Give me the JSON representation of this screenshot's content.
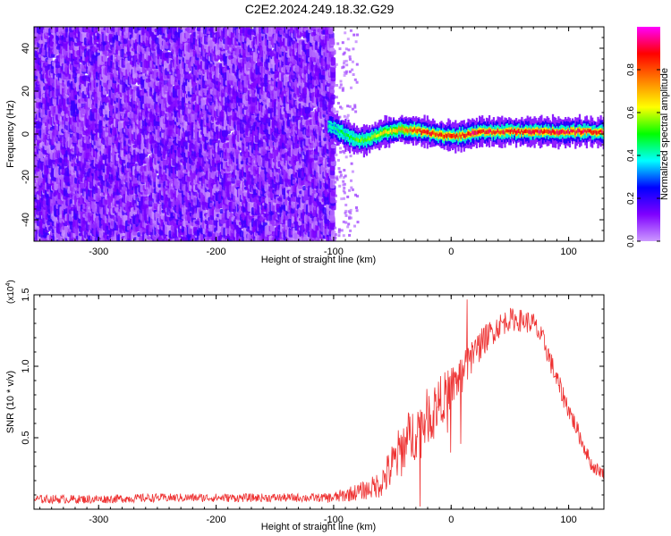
{
  "title": "C2E2.2024.249.18.32.G29",
  "chart_data": [
    {
      "type": "heatmap",
      "xlabel": "Height of straight line (km)",
      "ylabel": "Frequency (Hz)",
      "xlim": [
        -355,
        130
      ],
      "ylim": [
        -50,
        50
      ],
      "xticks": [
        -300,
        -200,
        -100,
        0,
        100
      ],
      "yticks": [
        -40,
        -20,
        0,
        20,
        40
      ],
      "colorbar": {
        "label": "Normalized spectral amplitude",
        "range": [
          0.0,
          1.0
        ],
        "ticks": [
          0.0,
          0.2,
          0.4,
          0.6,
          0.8
        ],
        "tick_labels": [
          "0.0",
          "0.2",
          "0.4",
          "0.6",
          "0.8"
        ],
        "colormap": [
          "#cc99ff",
          "#7f00ff",
          "#0000ff",
          "#00ffff",
          "#00ff00",
          "#ffff00",
          "#ff8000",
          "#ff0000",
          "#ff00ff"
        ]
      },
      "noise_region": {
        "x": [
          -355,
          -100
        ],
        "freq": [
          -50,
          50
        ],
        "amplitude": [
          0.0,
          0.2
        ]
      },
      "signal_track": {
        "x": [
          -105,
          -95,
          -85,
          -75,
          -65,
          -55,
          -45,
          -35,
          -25,
          -15,
          -5,
          5,
          15,
          25,
          35,
          45,
          55,
          65,
          75,
          85,
          95,
          105,
          115,
          130
        ],
        "freq": [
          4,
          1,
          -2,
          -3,
          -1,
          1,
          2,
          2,
          1,
          0,
          -1,
          -1,
          0,
          1,
          1,
          1,
          1,
          1,
          1,
          1,
          1,
          1,
          1,
          1
        ],
        "peak_amplitude": [
          0.45,
          0.5,
          0.55,
          0.6,
          0.65,
          0.7,
          0.75,
          0.85,
          0.9,
          0.9,
          0.9,
          0.9,
          0.95,
          0.95,
          0.95,
          0.95,
          0.95,
          0.95,
          0.95,
          0.95,
          0.95,
          0.95,
          0.95,
          0.95
        ]
      },
      "grid": false
    },
    {
      "type": "line",
      "xlabel": "Height of straight line (km)",
      "ylabel": "SNR (10 * v/v)",
      "y_multiplier": "(x10",
      "y_multiplier_exp": "4",
      "y_multiplier_close": ")",
      "xlim": [
        -355,
        130
      ],
      "ylim": [
        0,
        1.5
      ],
      "xticks": [
        -300,
        -200,
        -100,
        0,
        100
      ],
      "yticks": [
        0.5,
        1.0,
        1.5
      ],
      "ytick_labels": [
        "0.5",
        "1.0",
        "1.5"
      ],
      "color": "#ee3333",
      "series": [
        {
          "x": [
            -355,
            -300,
            -250,
            -200,
            -150,
            -110,
            -100,
            -90,
            -80,
            -70,
            -60,
            -50,
            -40,
            -30,
            -20,
            -10,
            0,
            10,
            20,
            30,
            40,
            50,
            60,
            70,
            80,
            90,
            100,
            110,
            120,
            130
          ],
          "values": [
            0.07,
            0.07,
            0.08,
            0.08,
            0.08,
            0.08,
            0.08,
            0.1,
            0.12,
            0.14,
            0.18,
            0.3,
            0.45,
            0.55,
            0.65,
            0.75,
            0.85,
            0.95,
            1.1,
            1.2,
            1.28,
            1.33,
            1.32,
            1.3,
            1.15,
            0.9,
            0.7,
            0.5,
            0.3,
            0.25
          ],
          "noise": [
            0.03,
            0.03,
            0.03,
            0.03,
            0.03,
            0.03,
            0.04,
            0.05,
            0.06,
            0.07,
            0.1,
            0.17,
            0.2,
            0.2,
            0.2,
            0.18,
            0.15,
            0.14,
            0.12,
            0.1,
            0.09,
            0.08,
            0.08,
            0.08,
            0.08,
            0.08,
            0.07,
            0.06,
            0.05,
            0.04
          ]
        }
      ],
      "grid": false
    }
  ]
}
